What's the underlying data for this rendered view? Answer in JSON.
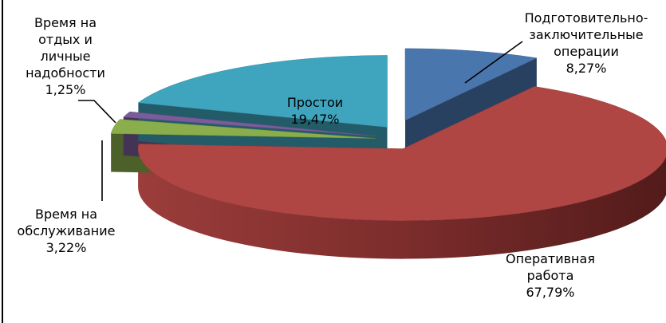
{
  "chart_data": {
    "type": "pie",
    "style": "3d-exploded",
    "title": "",
    "legend": "none",
    "slices": [
      {
        "label_lines": [
          "Подготовительно-",
          "заключительные",
          "операции"
        ],
        "value_label": "8,27%",
        "value": 8.27,
        "color": "#4A76AE"
      },
      {
        "label_lines": [
          "Оперативная",
          "работа"
        ],
        "value_label": "67,79%",
        "value": 67.79,
        "color": "#B04644"
      },
      {
        "label_lines": [
          "Время на",
          "обслуживание"
        ],
        "value_label": "3,22%",
        "value": 3.22,
        "color": "#8AAE4B"
      },
      {
        "label_lines": [
          "Время на",
          "отдых и",
          "личные",
          "надобности"
        ],
        "value_label": "1,25%",
        "value": 1.25,
        "color": "#7A5C9B"
      },
      {
        "label_lines": [
          "Простои"
        ],
        "value_label": "19,47%",
        "value": 19.47,
        "color": "#3FA5BE"
      }
    ]
  }
}
